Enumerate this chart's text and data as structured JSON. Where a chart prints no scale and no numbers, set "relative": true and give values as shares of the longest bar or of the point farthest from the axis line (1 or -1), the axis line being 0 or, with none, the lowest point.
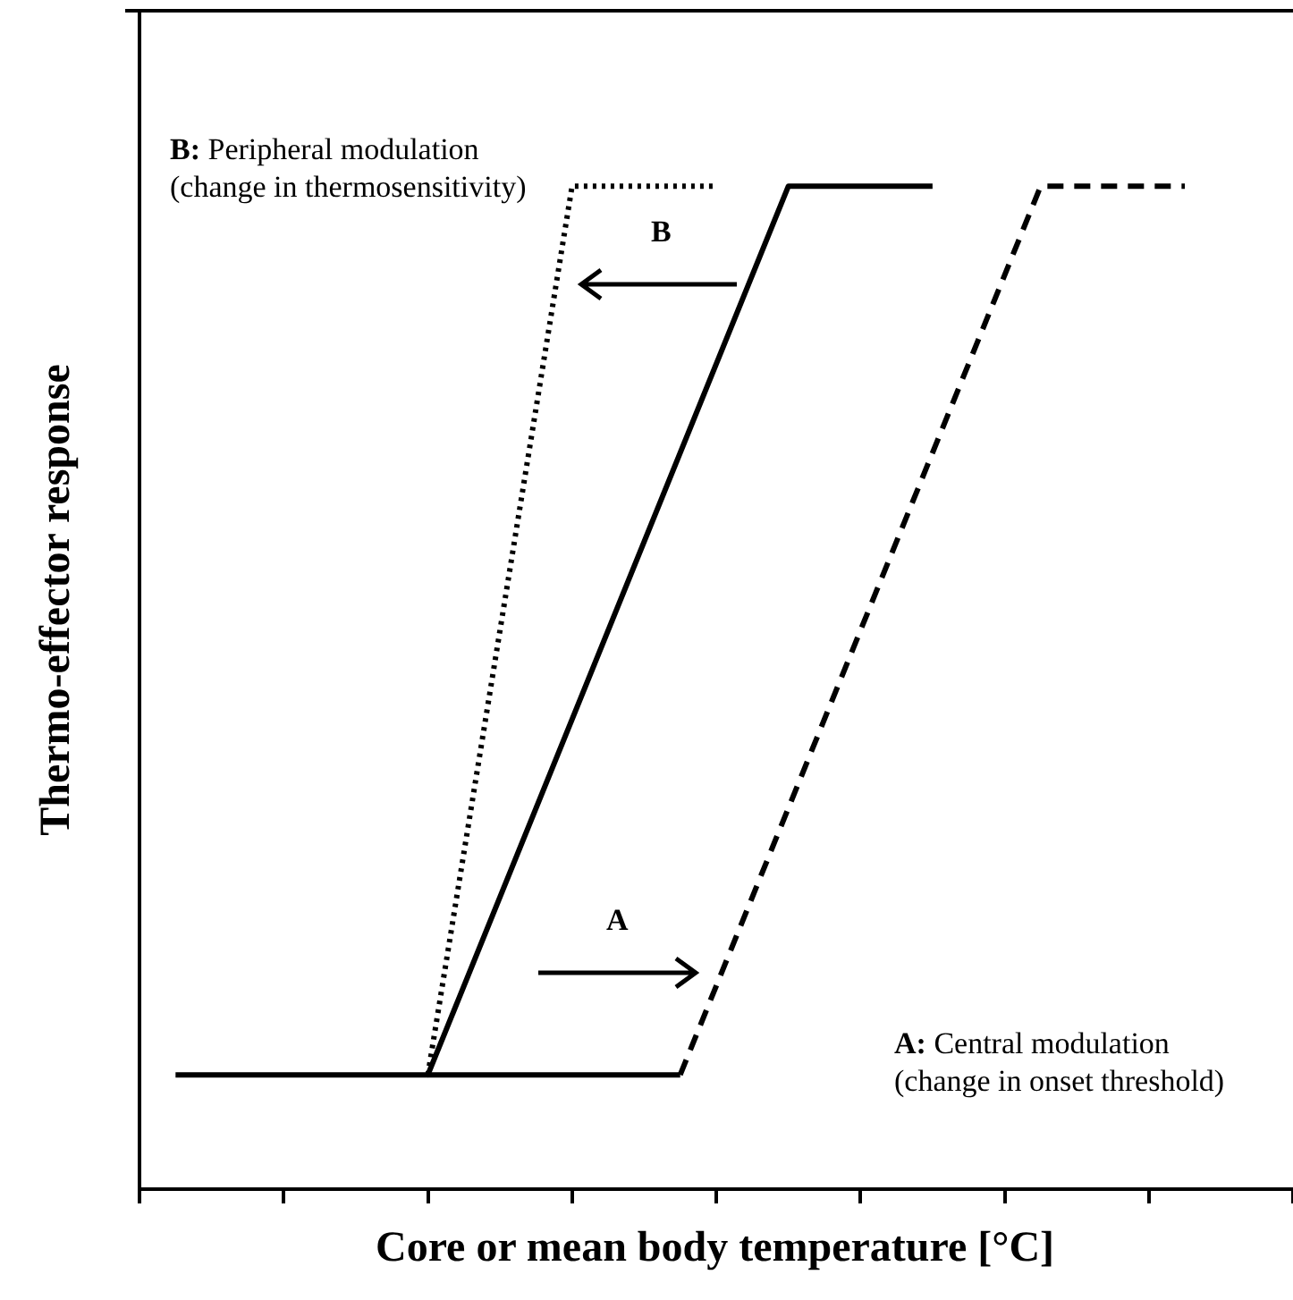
{
  "chart_data": {
    "type": "line",
    "relative": true,
    "xlabel": "Core or mean body temperature [°C]",
    "ylabel": "Thermo-effector response",
    "categories": [
      null,
      null,
      null,
      null,
      null,
      null,
      null,
      null,
      null,
      null,
      null,
      null,
      null,
      null,
      null,
      null,
      null,
      null,
      null,
      null,
      null,
      null,
      null,
      null,
      null,
      null,
      null,
      null,
      null,
      null,
      null,
      null,
      null
    ],
    "tick_labels": false,
    "grid": false,
    "legend": false,
    "marker": "none",
    "series": [
      {
        "color": "#000000",
        "line_style": "solid",
        "values": [
          null,
          0.114,
          null,
          null,
          null,
          null,
          null,
          null,
          0.114,
          null,
          null,
          null,
          null,
          null,
          null,
          null,
          null,
          null,
          1,
          null,
          null,
          null,
          1,
          null,
          null,
          null,
          null,
          null,
          null,
          null,
          null,
          null,
          null
        ]
      },
      {
        "color": "#000000",
        "line_style": "dotted",
        "values": [
          null,
          null,
          null,
          null,
          null,
          null,
          null,
          null,
          0.114,
          null,
          null,
          null,
          1,
          null,
          null,
          null,
          1,
          null,
          null,
          null,
          null,
          null,
          null,
          null,
          null,
          null,
          null,
          null,
          null,
          null,
          null,
          null,
          null
        ]
      },
      {
        "color": "#000000",
        "line_style": "dashed",
        "values": [
          null,
          null,
          null,
          null,
          null,
          null,
          null,
          null,
          null,
          null,
          null,
          null,
          null,
          null,
          null,
          0.114,
          null,
          null,
          null,
          null,
          null,
          null,
          null,
          null,
          null,
          1,
          null,
          null,
          null,
          1,
          null,
          null,
          null
        ]
      },
      {
        "color": "#000000",
        "line_style": "solid",
        "values": [
          null,
          null,
          null,
          null,
          null,
          null,
          null,
          null,
          0.114,
          null,
          null,
          null,
          null,
          null,
          null,
          0.114,
          null,
          null,
          null,
          null,
          null,
          null,
          null,
          null,
          null,
          null,
          null,
          null,
          null,
          null,
          null,
          null,
          null
        ]
      }
    ],
    "annotations": [
      "B: Peripheral modulation\n(change in thermosensitivity)",
      "A: Central modulation\n(change in onset threshold)",
      "A",
      "B"
    ]
  }
}
